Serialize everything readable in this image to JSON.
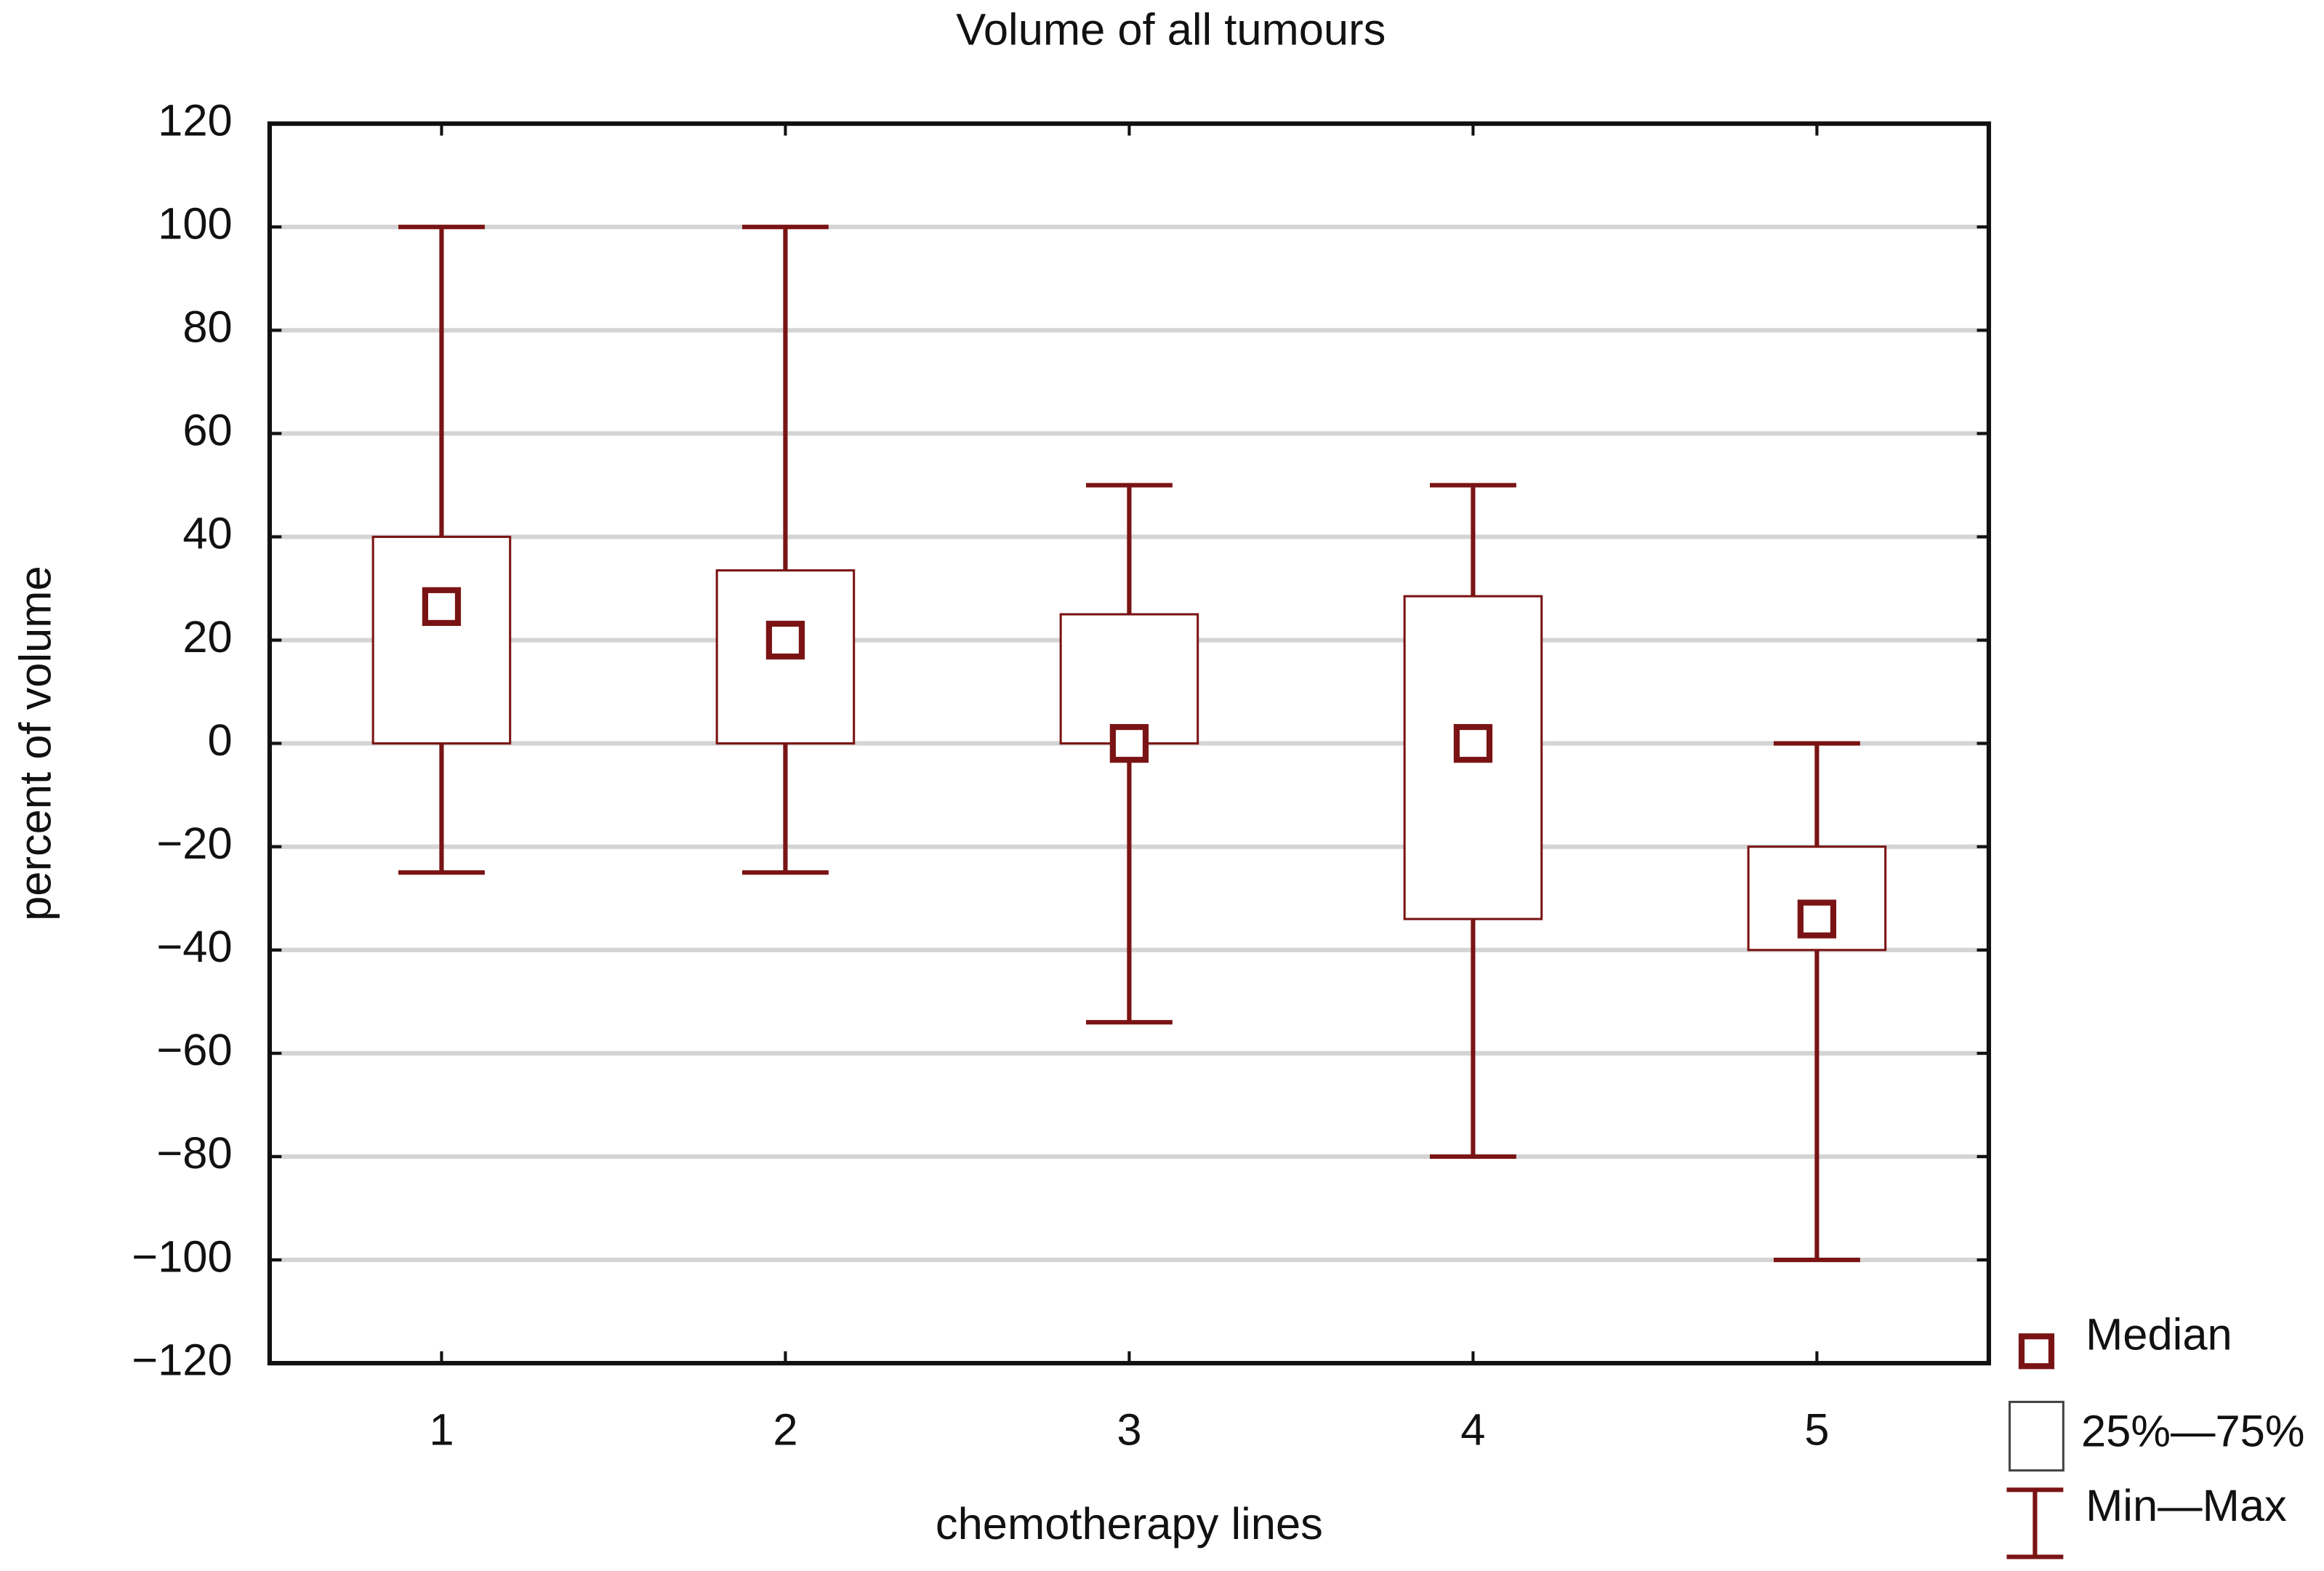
{
  "chart_data": {
    "type": "box",
    "title": "Volume of all tumours",
    "x_label": "chemotherapy lines",
    "y_label": "percent of volume",
    "categories": [
      "1",
      "2",
      "3",
      "4",
      "5"
    ],
    "median": [
      26.5,
      20,
      0,
      0,
      -34
    ],
    "q1": [
      0,
      0,
      0,
      -34,
      -40
    ],
    "q3": [
      40,
      33.5,
      25,
      28.5,
      -20
    ],
    "min": [
      -25,
      -25,
      -54,
      -80,
      -100
    ],
    "max": [
      100,
      100,
      50,
      50,
      0
    ],
    "color": "#7a1414",
    "ylim": [
      -120,
      120
    ],
    "yticks": [
      {
        "value": -120,
        "label": "−120"
      },
      {
        "value": -100,
        "label": "−100"
      },
      {
        "value": -80,
        "label": "−80"
      },
      {
        "value": -60,
        "label": "−60"
      },
      {
        "value": -40,
        "label": "−40"
      },
      {
        "value": -20,
        "label": "−20"
      },
      0,
      20,
      40,
      60,
      80,
      100,
      120
    ],
    "grid": true,
    "legend": {
      "median": "Median",
      "box": "25%—75%",
      "whisker": "Min—Max",
      "position": "bottom-right"
    }
  }
}
